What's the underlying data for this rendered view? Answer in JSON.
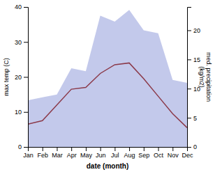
{
  "chart_data": {
    "type": "line",
    "x_label": "date (month)",
    "y_label": "max temp (C)",
    "y2_label": "med. precipitation\n(kg/m2)",
    "categories": [
      "Jan",
      "Feb",
      "Mar",
      "Apr",
      "May",
      "Jun",
      "Jul",
      "Aug",
      "Sep",
      "Oct",
      "Nov",
      "Dec"
    ],
    "series": [
      {
        "type": "area",
        "axis": "y2",
        "color": "#b8c0e8",
        "values": [
          8.0,
          8.5,
          9.0,
          13.5,
          13.0,
          22.5,
          21.5,
          23.5,
          20.0,
          19.5,
          11.5,
          11.0
        ]
      },
      {
        "type": "line",
        "color": "#8b3a4a",
        "values": [
          6.5,
          7.5,
          12.0,
          16.5,
          17.0,
          21.0,
          23.5,
          24.0,
          19.5,
          14.5,
          9.5,
          5.5
        ]
      }
    ],
    "ylim": [
      0,
      40
    ],
    "yticks": [
      0,
      10,
      20,
      30,
      40
    ],
    "y2lim": [
      0,
      24
    ],
    "y2ticks": [
      0,
      5,
      10,
      15,
      20
    ]
  }
}
